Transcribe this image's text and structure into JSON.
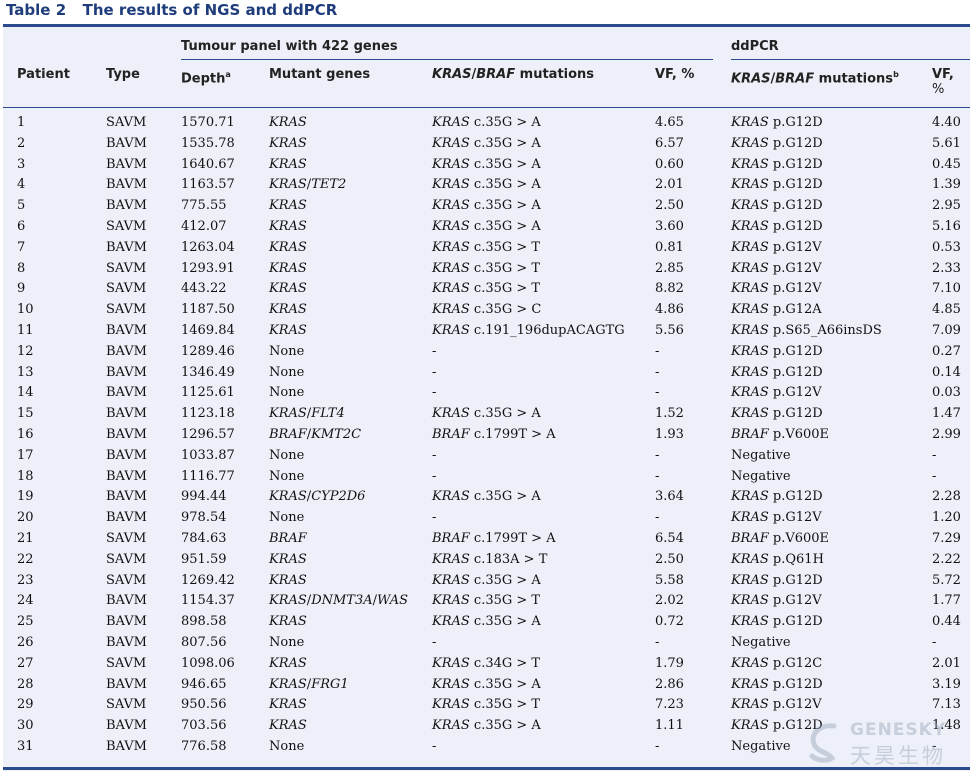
{
  "title": {
    "label": "Table 2",
    "text": "The results of NGS and ddPCR"
  },
  "groups": {
    "ngs": "Tumour panel with 422 genes",
    "ddpcr": "ddPCR"
  },
  "headers": {
    "patient": "Patient",
    "type": "Type",
    "depth": "Depth",
    "depth_sup": "a",
    "mutant_genes": "Mutant genes",
    "kras": "KRAS",
    "slash": "/",
    "braf": "BRAF",
    "mutations": " mutations",
    "vf_ngs": "VF, %",
    "dd_sup": "b",
    "vf_dd_1": "VF,",
    "vf_dd_2": "%"
  },
  "rows": [
    {
      "patient": "1",
      "type": "SAVM",
      "depth": "1570.71",
      "genes": "KRAS",
      "ngs_gene": "KRAS",
      "ngs_mut": " c.35G > A",
      "vf_ngs": "4.65",
      "dd_gene": "KRAS",
      "dd_mut": " p.G12D",
      "vf_dd": "4.40"
    },
    {
      "patient": "2",
      "type": "BAVM",
      "depth": "1535.78",
      "genes": "KRAS",
      "ngs_gene": "KRAS",
      "ngs_mut": " c.35G > A",
      "vf_ngs": "6.57",
      "dd_gene": "KRAS",
      "dd_mut": " p.G12D",
      "vf_dd": "5.61"
    },
    {
      "patient": "3",
      "type": "BAVM",
      "depth": "1640.67",
      "genes": "KRAS",
      "ngs_gene": "KRAS",
      "ngs_mut": " c.35G > A",
      "vf_ngs": "0.60",
      "dd_gene": "KRAS",
      "dd_mut": " p.G12D",
      "vf_dd": "0.45"
    },
    {
      "patient": "4",
      "type": "BAVM",
      "depth": "1163.57",
      "genes": "KRAS/TET2",
      "ngs_gene": "KRAS",
      "ngs_mut": " c.35G > A",
      "vf_ngs": "2.01",
      "dd_gene": "KRAS",
      "dd_mut": " p.G12D",
      "vf_dd": "1.39"
    },
    {
      "patient": "5",
      "type": "BAVM",
      "depth": "775.55",
      "genes": "KRAS",
      "ngs_gene": "KRAS",
      "ngs_mut": " c.35G > A",
      "vf_ngs": "2.50",
      "dd_gene": "KRAS",
      "dd_mut": " p.G12D",
      "vf_dd": "2.95"
    },
    {
      "patient": "6",
      "type": "SAVM",
      "depth": "412.07",
      "genes": "KRAS",
      "ngs_gene": "KRAS",
      "ngs_mut": " c.35G > A",
      "vf_ngs": "3.60",
      "dd_gene": "KRAS",
      "dd_mut": " p.G12D",
      "vf_dd": "5.16"
    },
    {
      "patient": "7",
      "type": "BAVM",
      "depth": "1263.04",
      "genes": "KRAS",
      "ngs_gene": "KRAS",
      "ngs_mut": " c.35G > T",
      "vf_ngs": "0.81",
      "dd_gene": "KRAS",
      "dd_mut": " p.G12V",
      "vf_dd": "0.53"
    },
    {
      "patient": "8",
      "type": "SAVM",
      "depth": "1293.91",
      "genes": "KRAS",
      "ngs_gene": "KRAS",
      "ngs_mut": " c.35G > T",
      "vf_ngs": "2.85",
      "dd_gene": "KRAS",
      "dd_mut": " p.G12V",
      "vf_dd": "2.33"
    },
    {
      "patient": "9",
      "type": "SAVM",
      "depth": "443.22",
      "genes": "KRAS",
      "ngs_gene": "KRAS",
      "ngs_mut": " c.35G > T",
      "vf_ngs": "8.82",
      "dd_gene": "KRAS",
      "dd_mut": " p.G12V",
      "vf_dd": "7.10"
    },
    {
      "patient": "10",
      "type": "SAVM",
      "depth": "1187.50",
      "genes": "KRAS",
      "ngs_gene": "KRAS",
      "ngs_mut": " c.35G > C",
      "vf_ngs": "4.86",
      "dd_gene": "KRAS",
      "dd_mut": " p.G12A",
      "vf_dd": "4.85"
    },
    {
      "patient": "11",
      "type": "BAVM",
      "depth": "1469.84",
      "genes": "KRAS",
      "ngs_gene": "KRAS",
      "ngs_mut": " c.191_196dupACAGTG",
      "vf_ngs": "5.56",
      "dd_gene": "KRAS",
      "dd_mut": " p.S65_A66insDS",
      "vf_dd": "7.09"
    },
    {
      "patient": "12",
      "type": "BAVM",
      "depth": "1289.46",
      "genes": "None",
      "ngs_gene": "",
      "ngs_mut": "-",
      "vf_ngs": "-",
      "dd_gene": "KRAS",
      "dd_mut": " p.G12D",
      "vf_dd": "0.27"
    },
    {
      "patient": "13",
      "type": "BAVM",
      "depth": "1346.49",
      "genes": "None",
      "ngs_gene": "",
      "ngs_mut": "-",
      "vf_ngs": "-",
      "dd_gene": "KRAS",
      "dd_mut": " p.G12D",
      "vf_dd": "0.14"
    },
    {
      "patient": "14",
      "type": "BAVM",
      "depth": "1125.61",
      "genes": "None",
      "ngs_gene": "",
      "ngs_mut": "-",
      "vf_ngs": "-",
      "dd_gene": "KRAS",
      "dd_mut": " p.G12V",
      "vf_dd": "0.03"
    },
    {
      "patient": "15",
      "type": "BAVM",
      "depth": "1123.18",
      "genes": "KRAS/FLT4",
      "ngs_gene": "KRAS",
      "ngs_mut": " c.35G > A",
      "vf_ngs": "1.52",
      "dd_gene": "KRAS",
      "dd_mut": " p.G12D",
      "vf_dd": "1.47"
    },
    {
      "patient": "16",
      "type": "BAVM",
      "depth": "1296.57",
      "genes": "BRAF/KMT2C",
      "ngs_gene": "BRAF",
      "ngs_mut": " c.1799T > A",
      "vf_ngs": "1.93",
      "dd_gene": "BRAF",
      "dd_mut": " p.V600E",
      "vf_dd": "2.99"
    },
    {
      "patient": "17",
      "type": "BAVM",
      "depth": "1033.87",
      "genes": "None",
      "ngs_gene": "",
      "ngs_mut": "-",
      "vf_ngs": "-",
      "dd_gene": "",
      "dd_mut": "Negative",
      "vf_dd": "-"
    },
    {
      "patient": "18",
      "type": "BAVM",
      "depth": "1116.77",
      "genes": "None",
      "ngs_gene": "",
      "ngs_mut": "-",
      "vf_ngs": "-",
      "dd_gene": "",
      "dd_mut": "Negative",
      "vf_dd": "-"
    },
    {
      "patient": "19",
      "type": "BAVM",
      "depth": "994.44",
      "genes": "KRAS/CYP2D6",
      "ngs_gene": "KRAS",
      "ngs_mut": " c.35G > A",
      "vf_ngs": "3.64",
      "dd_gene": "KRAS",
      "dd_mut": " p.G12D",
      "vf_dd": "2.28"
    },
    {
      "patient": "20",
      "type": "BAVM",
      "depth": "978.54",
      "genes": "None",
      "ngs_gene": "",
      "ngs_mut": "-",
      "vf_ngs": "-",
      "dd_gene": "KRAS",
      "dd_mut": " p.G12V",
      "vf_dd": "1.20"
    },
    {
      "patient": "21",
      "type": "SAVM",
      "depth": "784.63",
      "genes": "BRAF",
      "ngs_gene": "BRAF",
      "ngs_mut": " c.1799T > A",
      "vf_ngs": "6.54",
      "dd_gene": "BRAF",
      "dd_mut": " p.V600E",
      "vf_dd": "7.29"
    },
    {
      "patient": "22",
      "type": "SAVM",
      "depth": "951.59",
      "genes": "KRAS",
      "ngs_gene": "KRAS",
      "ngs_mut": " c.183A > T",
      "vf_ngs": "2.50",
      "dd_gene": "KRAS",
      "dd_mut": " p.Q61H",
      "vf_dd": "2.22"
    },
    {
      "patient": "23",
      "type": "SAVM",
      "depth": "1269.42",
      "genes": "KRAS",
      "ngs_gene": "KRAS",
      "ngs_mut": " c.35G > A",
      "vf_ngs": "5.58",
      "dd_gene": "KRAS",
      "dd_mut": " p.G12D",
      "vf_dd": "5.72"
    },
    {
      "patient": "24",
      "type": "BAVM",
      "depth": "1154.37",
      "genes": "KRAS/DNMT3A/WAS",
      "ngs_gene": "KRAS",
      "ngs_mut": " c.35G > T",
      "vf_ngs": "2.02",
      "dd_gene": "KRAS",
      "dd_mut": " p.G12V",
      "vf_dd": "1.77"
    },
    {
      "patient": "25",
      "type": "BAVM",
      "depth": "898.58",
      "genes": "KRAS",
      "ngs_gene": "KRAS",
      "ngs_mut": " c.35G > A",
      "vf_ngs": "0.72",
      "dd_gene": "KRAS",
      "dd_mut": " p.G12D",
      "vf_dd": "0.44"
    },
    {
      "patient": "26",
      "type": "BAVM",
      "depth": "807.56",
      "genes": "None",
      "ngs_gene": "",
      "ngs_mut": "-",
      "vf_ngs": "-",
      "dd_gene": "",
      "dd_mut": "Negative",
      "vf_dd": "-"
    },
    {
      "patient": "27",
      "type": "SAVM",
      "depth": "1098.06",
      "genes": "KRAS",
      "ngs_gene": "KRAS",
      "ngs_mut": " c.34G > T",
      "vf_ngs": "1.79",
      "dd_gene": "KRAS",
      "dd_mut": " p.G12C",
      "vf_dd": "2.01"
    },
    {
      "patient": "28",
      "type": "BAVM",
      "depth": "946.65",
      "genes": "KRAS/FRG1",
      "ngs_gene": "KRAS",
      "ngs_mut": " c.35G > A",
      "vf_ngs": "2.86",
      "dd_gene": "KRAS",
      "dd_mut": " p.G12D",
      "vf_dd": "3.19"
    },
    {
      "patient": "29",
      "type": "SAVM",
      "depth": "950.56",
      "genes": "KRAS",
      "ngs_gene": "KRAS",
      "ngs_mut": " c.35G > T",
      "vf_ngs": "7.23",
      "dd_gene": "KRAS",
      "dd_mut": " p.G12V",
      "vf_dd": "7.13"
    },
    {
      "patient": "30",
      "type": "BAVM",
      "depth": "703.56",
      "genes": "KRAS",
      "ngs_gene": "KRAS",
      "ngs_mut": " c.35G > A",
      "vf_ngs": "1.11",
      "dd_gene": "KRAS",
      "dd_mut": " p.G12D",
      "vf_dd": "1.48"
    },
    {
      "patient": "31",
      "type": "BAVM",
      "depth": "776.58",
      "genes": "None",
      "ngs_gene": "",
      "ngs_mut": "-",
      "vf_ngs": "-",
      "dd_gene": "",
      "dd_mut": "Negative",
      "vf_dd": "-"
    }
  ],
  "watermark": {
    "brand": "GENESKY",
    "brand_cn": "天昊生物",
    "icon": "genesky-logo-icon"
  },
  "colors": {
    "accent": "#2a4a8c",
    "title": "#1f3d7a",
    "table_bg": "#edf0f8"
  }
}
